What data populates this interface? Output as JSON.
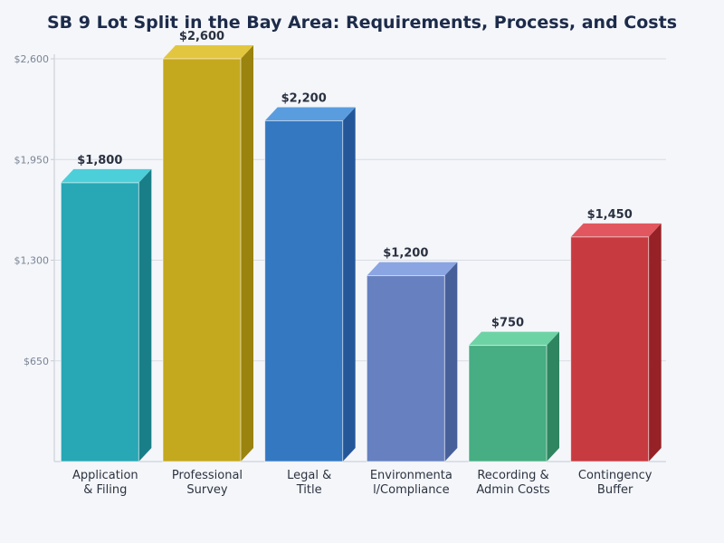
{
  "chart_data": {
    "type": "bar",
    "title": "SB 9 Lot Split in the Bay Area: Requirements, Process, and Costs",
    "xlabel": "",
    "ylabel": "",
    "categories": [
      [
        "Application",
        "& Filing"
      ],
      [
        "Professional",
        "Survey"
      ],
      [
        "Legal &",
        "Title"
      ],
      [
        "Environmenta",
        "l/Compliance"
      ],
      [
        "Recording &",
        "Admin Costs"
      ],
      [
        "Contingency",
        "Buffer"
      ]
    ],
    "values": [
      1800,
      2600,
      2200,
      1200,
      750,
      1450
    ],
    "data_labels": [
      "$1,800",
      "$2,600",
      "$2,200",
      "$1,200",
      "$750",
      "$1,450"
    ],
    "yticks": [
      650,
      1300,
      1950,
      2600
    ],
    "ytick_labels": [
      "$650",
      "$1,300",
      "$1,950",
      "$2,600"
    ],
    "ylim": [
      0,
      2600
    ],
    "grid": true,
    "legend": "none",
    "colors": [
      {
        "front": "#28a7b5",
        "top": "#4ccfd9",
        "side": "#1a7e88"
      },
      {
        "front": "#c4a81e",
        "top": "#e3c63f",
        "side": "#9a830f"
      },
      {
        "front": "#3478c1",
        "top": "#5a9ddf",
        "side": "#24579a"
      },
      {
        "front": "#6680c0",
        "top": "#8aa5e2",
        "side": "#48609a"
      },
      {
        "front": "#47ad82",
        "top": "#6dd3a5",
        "side": "#2e8560"
      },
      {
        "front": "#c73a3f",
        "top": "#e2575f",
        "side": "#962126"
      }
    ]
  }
}
